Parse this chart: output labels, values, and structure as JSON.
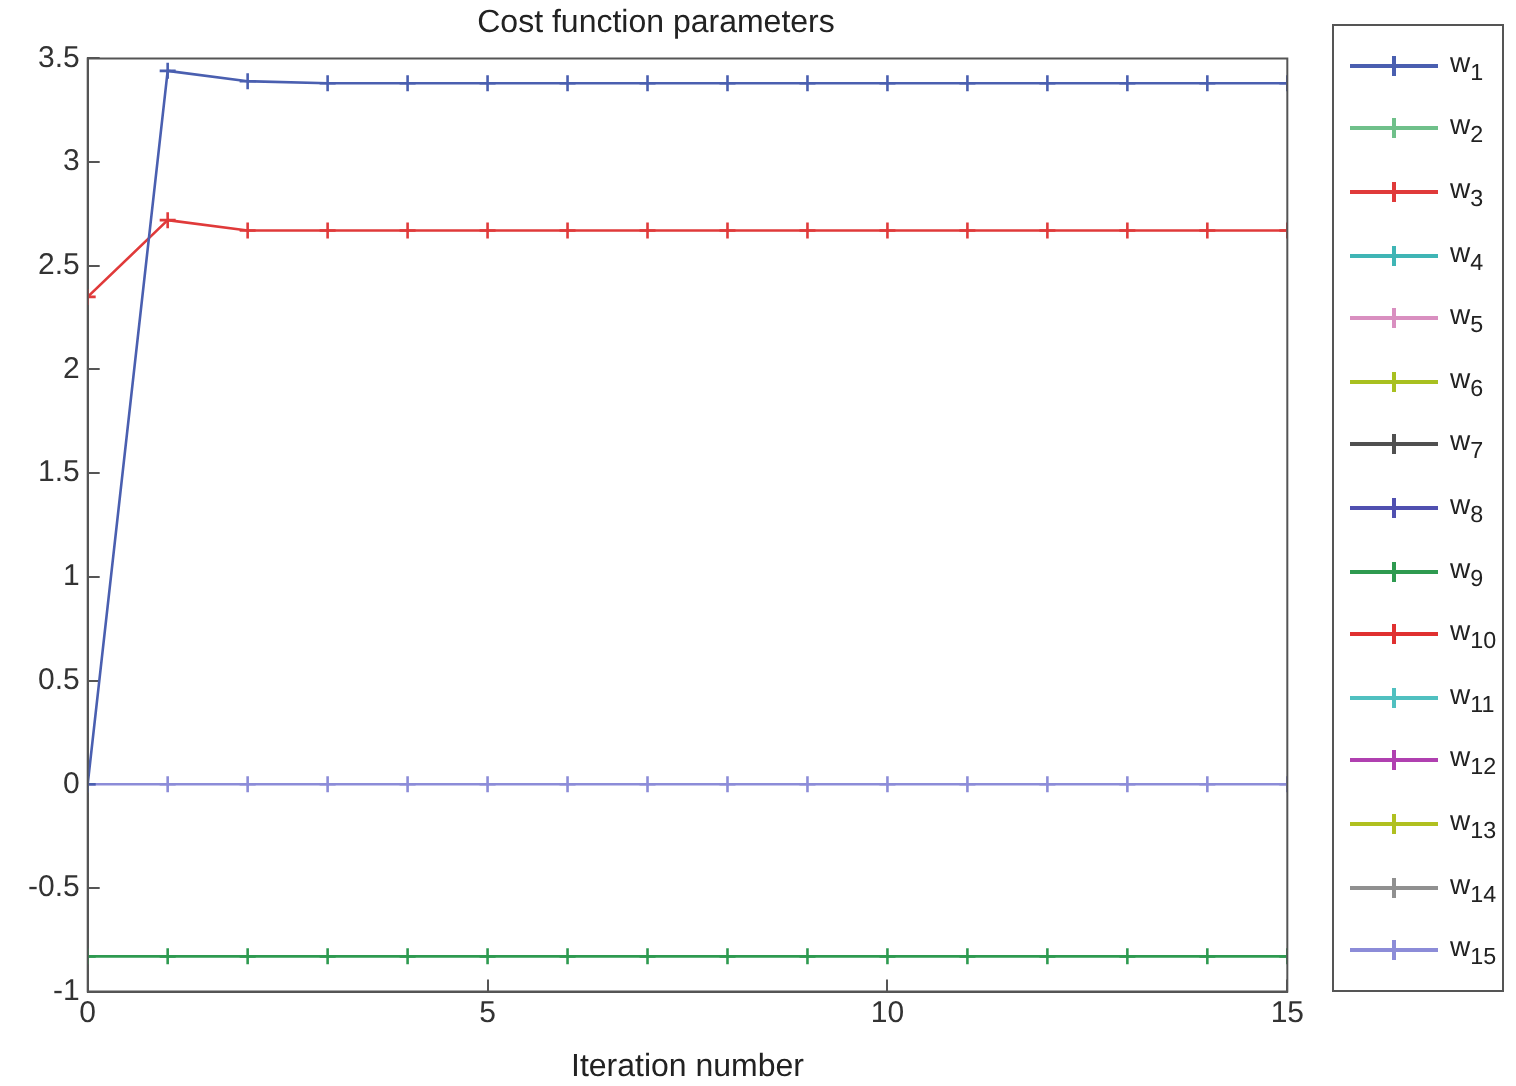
{
  "chart_data": {
    "type": "line",
    "title": "Cost function parameters",
    "xlabel": "Iteration number",
    "x": [
      0,
      1,
      2,
      3,
      4,
      5,
      6,
      7,
      8,
      9,
      10,
      11,
      12,
      13,
      14,
      15
    ],
    "xlim": [
      0,
      15
    ],
    "xticks": [
      0,
      5,
      10,
      15
    ],
    "ylim": [
      -1,
      3.5
    ],
    "yticks": [
      -1,
      -0.5,
      0,
      0.5,
      1,
      1.5,
      2,
      2.5,
      3,
      3.5
    ],
    "grid": false,
    "legend": "right",
    "marker": "cross",
    "line_style": "solid",
    "series": [
      {
        "name": "w$_{1}$",
        "color": "#4a5fb0",
        "values": [
          0,
          3.44,
          3.39,
          3.38,
          3.38,
          3.38,
          3.38,
          3.38,
          3.38,
          3.38,
          3.38,
          3.38,
          3.38,
          3.38,
          3.38,
          3.38
        ]
      },
      {
        "name": "w$_{2}$",
        "color": "#6fc08a",
        "values": [
          null,
          null,
          null,
          null,
          null,
          null,
          null,
          null,
          null,
          null,
          null,
          null,
          null,
          null,
          null,
          null
        ]
      },
      {
        "name": "w$_{3}$",
        "color": "#e03a3a",
        "values": [
          2.35,
          2.72,
          2.67,
          2.67,
          2.67,
          2.67,
          2.67,
          2.67,
          2.67,
          2.67,
          2.67,
          2.67,
          2.67,
          2.67,
          2.67,
          2.67
        ]
      },
      {
        "name": "w$_{4}$",
        "color": "#3fb5b5",
        "values": [
          null,
          null,
          null,
          null,
          null,
          null,
          null,
          null,
          null,
          null,
          null,
          null,
          null,
          null,
          null,
          null
        ]
      },
      {
        "name": "w$_{5}$",
        "color": "#d98fc0",
        "values": [
          null,
          null,
          null,
          null,
          null,
          null,
          null,
          null,
          null,
          null,
          null,
          null,
          null,
          null,
          null,
          null
        ]
      },
      {
        "name": "w$_{6}$",
        "color": "#a8c020",
        "values": [
          null,
          null,
          null,
          null,
          null,
          null,
          null,
          null,
          null,
          null,
          null,
          null,
          null,
          null,
          null,
          null
        ]
      },
      {
        "name": "w$_{7}$",
        "color": "#505050",
        "values": [
          null,
          null,
          null,
          null,
          null,
          null,
          null,
          null,
          null,
          null,
          null,
          null,
          null,
          null,
          null,
          null
        ]
      },
      {
        "name": "w$_{8}$",
        "color": "#5050b0",
        "values": [
          null,
          null,
          null,
          null,
          null,
          null,
          null,
          null,
          null,
          null,
          null,
          null,
          null,
          null,
          null,
          null
        ]
      },
      {
        "name": "w$_{9}$",
        "color": "#2e9a50",
        "values": [
          -0.83,
          -0.83,
          -0.83,
          -0.83,
          -0.83,
          -0.83,
          -0.83,
          -0.83,
          -0.83,
          -0.83,
          -0.83,
          -0.83,
          -0.83,
          -0.83,
          -0.83,
          -0.83
        ]
      },
      {
        "name": "w$_{10}$",
        "color": "#e03030",
        "values": [
          null,
          null,
          null,
          null,
          null,
          null,
          null,
          null,
          null,
          null,
          null,
          null,
          null,
          null,
          null,
          null
        ]
      },
      {
        "name": "w$_{11}$",
        "color": "#50c0c0",
        "values": [
          null,
          null,
          null,
          null,
          null,
          null,
          null,
          null,
          null,
          null,
          null,
          null,
          null,
          null,
          null,
          null
        ]
      },
      {
        "name": "w$_{12}$",
        "color": "#b040b0",
        "values": [
          null,
          null,
          null,
          null,
          null,
          null,
          null,
          null,
          null,
          null,
          null,
          null,
          null,
          null,
          null,
          null
        ]
      },
      {
        "name": "w$_{13}$",
        "color": "#b0c020",
        "values": [
          null,
          null,
          null,
          null,
          null,
          null,
          null,
          null,
          null,
          null,
          null,
          null,
          null,
          null,
          null,
          null
        ]
      },
      {
        "name": "w$_{14}$",
        "color": "#909090",
        "values": [
          null,
          null,
          null,
          null,
          null,
          null,
          null,
          null,
          null,
          null,
          null,
          null,
          null,
          null,
          null,
          null
        ]
      },
      {
        "name": "w$_{15}$",
        "color": "#8c8cd8",
        "values": [
          0,
          0,
          0,
          0,
          0,
          0,
          0,
          0,
          0,
          0,
          0,
          0,
          0,
          0,
          0,
          0
        ]
      }
    ]
  }
}
